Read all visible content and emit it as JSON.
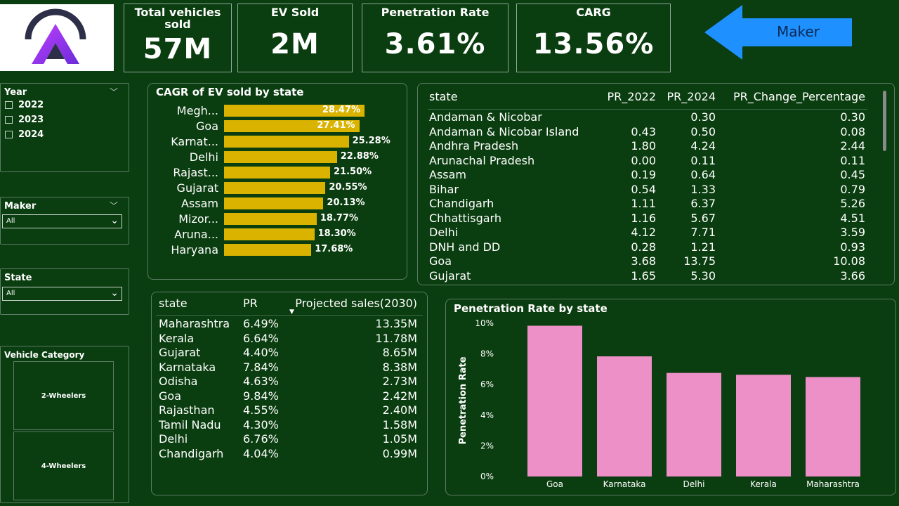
{
  "kpis": [
    {
      "title": "Total vehicles sold",
      "value": "57M"
    },
    {
      "title": "EV Sold",
      "value": "2M"
    },
    {
      "title": "Penetration Rate",
      "value": "3.61%"
    },
    {
      "title": "CARG",
      "value": "13.56%"
    }
  ],
  "nav": {
    "maker_button_label": "Maker"
  },
  "colors": {
    "background": "#0a3d0f",
    "bar_yellow": "#d9b300",
    "bar_pink": "#ee90c8",
    "arrow_blue": "#1e90ff"
  },
  "filters": {
    "year": {
      "title": "Year",
      "options": [
        "2022",
        "2023",
        "2024"
      ]
    },
    "maker": {
      "title": "Maker",
      "value": "All"
    },
    "state": {
      "title": "State",
      "value": "All"
    },
    "vehicle_category": {
      "title": "Vehicle Category",
      "tiles": [
        "2-Wheelers",
        "4-Wheelers"
      ]
    }
  },
  "cagr_chart": {
    "title": "CAGR of EV sold by state",
    "rows": [
      {
        "label": "Megh...",
        "value": 28.47,
        "text": "28.47%"
      },
      {
        "label": "Goa",
        "value": 27.41,
        "text": "27.41%"
      },
      {
        "label": "Karnat...",
        "value": 25.28,
        "text": "25.28%"
      },
      {
        "label": "Delhi",
        "value": 22.88,
        "text": "22.88%"
      },
      {
        "label": "Rajast...",
        "value": 21.5,
        "text": "21.50%"
      },
      {
        "label": "Gujarat",
        "value": 20.55,
        "text": "20.55%"
      },
      {
        "label": "Assam",
        "value": 20.13,
        "text": "20.13%"
      },
      {
        "label": "Mizor...",
        "value": 18.77,
        "text": "18.77%"
      },
      {
        "label": "Aruna...",
        "value": 18.3,
        "text": "18.30%"
      },
      {
        "label": "Haryana",
        "value": 17.68,
        "text": "17.68%"
      }
    ]
  },
  "pr_table": {
    "columns": [
      "state",
      "PR_2022",
      "PR_2024",
      "PR_Change_Percentage"
    ],
    "rows": [
      [
        "Andaman & Nicobar",
        "",
        "0.30",
        "0.30"
      ],
      [
        "Andaman & Nicobar Island",
        "0.43",
        "0.50",
        "0.08"
      ],
      [
        "Andhra Pradesh",
        "1.80",
        "4.24",
        "2.44"
      ],
      [
        "Arunachal Pradesh",
        "0.00",
        "0.11",
        "0.11"
      ],
      [
        "Assam",
        "0.19",
        "0.64",
        "0.45"
      ],
      [
        "Bihar",
        "0.54",
        "1.33",
        "0.79"
      ],
      [
        "Chandigarh",
        "1.11",
        "6.37",
        "5.26"
      ],
      [
        "Chhattisgarh",
        "1.16",
        "5.67",
        "4.51"
      ],
      [
        "Delhi",
        "4.12",
        "7.71",
        "3.59"
      ],
      [
        "DNH and DD",
        "0.28",
        "1.21",
        "0.93"
      ],
      [
        "Goa",
        "3.68",
        "13.75",
        "10.08"
      ],
      [
        "Gujarat",
        "1.65",
        "5.30",
        "3.66"
      ]
    ]
  },
  "projection_table": {
    "columns": [
      "state",
      "PR",
      "Projected sales(2030)"
    ],
    "rows": [
      [
        "Maharashtra",
        "6.49%",
        "13.35M"
      ],
      [
        "Kerala",
        "6.64%",
        "11.78M"
      ],
      [
        "Gujarat",
        "4.40%",
        "8.65M"
      ],
      [
        "Karnataka",
        "7.84%",
        "8.38M"
      ],
      [
        "Odisha",
        "4.63%",
        "2.73M"
      ],
      [
        "Goa",
        "9.84%",
        "2.42M"
      ],
      [
        "Rajasthan",
        "4.55%",
        "2.40M"
      ],
      [
        "Tamil Nadu",
        "4.30%",
        "1.58M"
      ],
      [
        "Delhi",
        "6.76%",
        "1.05M"
      ],
      [
        "Chandigarh",
        "4.04%",
        "0.99M"
      ]
    ]
  },
  "chart_data": {
    "type": "bar",
    "title": "Penetration Rate by state",
    "xlabel": "",
    "ylabel": "Penetration Rate",
    "categories": [
      "Goa",
      "Karnataka",
      "Delhi",
      "Kerala",
      "Maharashtra"
    ],
    "values": [
      9.84,
      7.84,
      6.76,
      6.64,
      6.49
    ],
    "yticks": [
      "0%",
      "2%",
      "4%",
      "6%",
      "8%",
      "10%"
    ],
    "ylim": [
      0,
      10
    ],
    "grid": false
  }
}
